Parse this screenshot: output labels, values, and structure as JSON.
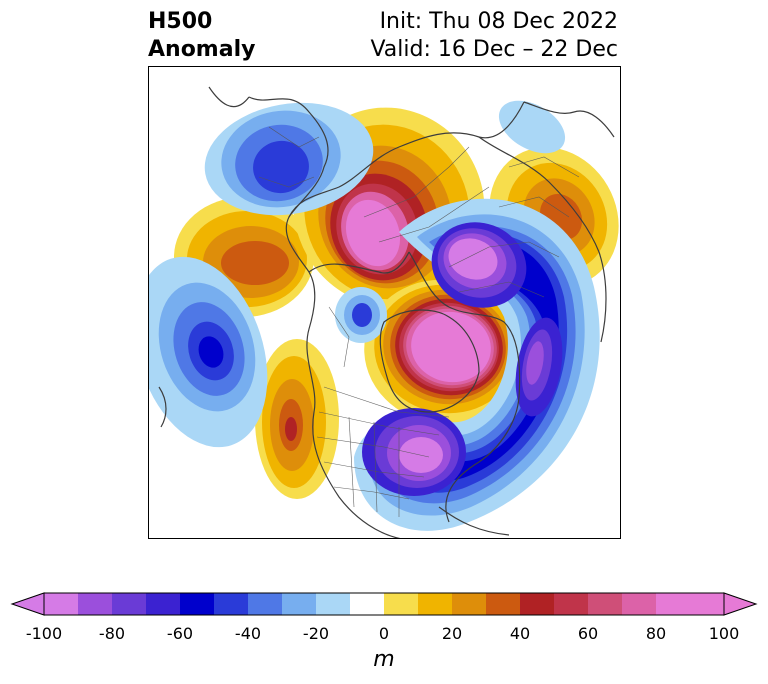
{
  "header": {
    "title_line1": "H500",
    "title_line2": "Anomaly",
    "init_text": "Init: Thu 08 Dec 2022",
    "valid_text": "Valid: 16 Dec – 22 Dec"
  },
  "colorbar": {
    "unit": "m",
    "ticks": [
      "-100",
      "-80",
      "-60",
      "-40",
      "-20",
      "0",
      "20",
      "40",
      "60",
      "80",
      "100"
    ],
    "extend": "both",
    "colors": [
      "#d57be6",
      "#9b4fdc",
      "#6a3bd6",
      "#3b22d1",
      "#0000cc",
      "#2a3bd8",
      "#4f78e6",
      "#77aeef",
      "#aad7f6",
      "#ffffff",
      "#f7dd4c",
      "#f0b400",
      "#de8e0a",
      "#cc5a10",
      "#b02224",
      "#c0344a",
      "#cf4f78",
      "#dc62a8",
      "#e67ad6"
    ]
  },
  "map": {
    "type": "filled-contour",
    "variable": "500 hPa geopotential height anomaly",
    "projection": "north-polar-stereographic",
    "color_min": -100,
    "color_max": 100
  }
}
